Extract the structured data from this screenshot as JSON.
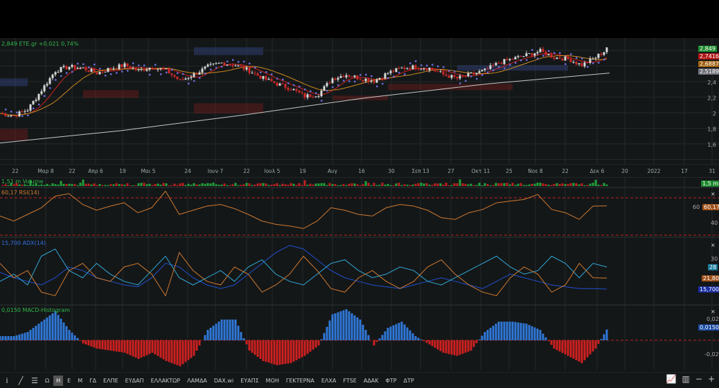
{
  "header": {
    "price": "2,849",
    "symbol": "ETE.gr",
    "change": "+0,021",
    "change_pct": "0,74%"
  },
  "panes": {
    "volume": {
      "label": "1,51 m Volume",
      "tag": "1,5 m"
    },
    "rsi": {
      "label": "60,17 RSI(14)",
      "tag": "60,17",
      "ticks": [
        "60",
        "40"
      ]
    },
    "adx": {
      "label": "15,700 ADX(14)",
      "tags": [
        "28",
        "21,80",
        "15,700"
      ],
      "ticks": [
        "30"
      ]
    },
    "macd": {
      "label": "0,0150 MACD-Histogram",
      "tag": "0,0150",
      "ticks": [
        "0,02",
        "-0,02"
      ]
    }
  },
  "price_tags": [
    {
      "value": "2,849",
      "color": "#1e8a2e"
    },
    {
      "value": "2,7416",
      "color": "#b01818"
    },
    {
      "value": "2,6887",
      "color": "#a06010"
    },
    {
      "value": "2,5189",
      "color": "#707078"
    }
  ],
  "close_symbol": "×",
  "chart_data": {
    "type": "candlestick",
    "ylim": [
      1.5,
      2.9
    ],
    "price_ticks": [
      "2,4",
      "2,2",
      "2",
      "1,8",
      "1,6"
    ],
    "price_tick_values": [
      2.4,
      2.2,
      2.0,
      1.8,
      1.6
    ],
    "x_tick_labels": [
      "22",
      "Μαρ 8",
      "22",
      "Απρ 6",
      "19",
      "Μαι 5",
      "24",
      "Ιουν 7",
      "22",
      "Ιουλ 5",
      "19",
      "Αυγ",
      "16",
      "30",
      "Σεπ 13",
      "27",
      "Οκτ 11",
      "25",
      "Νοε 8",
      "22",
      "Δεκ 6",
      "20",
      "2022",
      "17",
      "31"
    ],
    "closes": [
      2.0,
      1.97,
      2.05,
      2.3,
      2.55,
      2.6,
      2.58,
      2.52,
      2.58,
      2.62,
      2.55,
      2.6,
      2.55,
      2.42,
      2.5,
      2.6,
      2.65,
      2.62,
      2.55,
      2.45,
      2.38,
      2.32,
      2.22,
      2.25,
      2.45,
      2.5,
      2.45,
      2.42,
      2.52,
      2.58,
      2.6,
      2.58,
      2.5,
      2.45,
      2.5,
      2.55,
      2.65,
      2.7,
      2.75,
      2.8,
      2.72,
      2.7,
      2.62,
      2.72,
      2.849
    ],
    "ma200": [
      1.62,
      1.78,
      1.98,
      2.2,
      2.38,
      2.5189
    ],
    "rsi": [
      48,
      42,
      50,
      58,
      72,
      75,
      62,
      55,
      60,
      64,
      52,
      58,
      78,
      50,
      55,
      60,
      62,
      57,
      50,
      42,
      38,
      36,
      33,
      42,
      58,
      55,
      50,
      48,
      58,
      62,
      60,
      55,
      46,
      44,
      52,
      56,
      64,
      66,
      68,
      74,
      56,
      52,
      44,
      60,
      60.17
    ],
    "adx": [
      25,
      22,
      20,
      18,
      22,
      28,
      26,
      22,
      20,
      18,
      17,
      22,
      30,
      28,
      22,
      18,
      16,
      18,
      24,
      30,
      36,
      40,
      38,
      32,
      26,
      22,
      20,
      18,
      17,
      16,
      18,
      20,
      22,
      20,
      18,
      16,
      20,
      24,
      22,
      20,
      18,
      17,
      16,
      16,
      15.7
    ],
    "plus_di": [
      20,
      24,
      18,
      34,
      38,
      26,
      22,
      30,
      24,
      20,
      18,
      26,
      34,
      22,
      18,
      22,
      26,
      20,
      28,
      32,
      24,
      20,
      18,
      24,
      30,
      32,
      26,
      22,
      24,
      28,
      26,
      20,
      18,
      22,
      26,
      30,
      34,
      28,
      24,
      26,
      34,
      30,
      22,
      30,
      28
    ],
    "minus_di": [
      30,
      22,
      26,
      14,
      12,
      26,
      30,
      22,
      20,
      28,
      30,
      24,
      12,
      36,
      26,
      20,
      18,
      28,
      24,
      14,
      18,
      24,
      34,
      26,
      16,
      14,
      22,
      26,
      20,
      16,
      20,
      28,
      32,
      24,
      18,
      14,
      12,
      22,
      28,
      24,
      14,
      18,
      30,
      22,
      21.8
    ],
    "macd_hist": [
      0.004,
      0.004,
      0.008,
      0.018,
      0.028,
      0.01,
      -0.003,
      -0.008,
      -0.01,
      -0.012,
      -0.018,
      -0.012,
      -0.02,
      -0.025,
      -0.015,
      0.01,
      0.02,
      0.02,
      -0.01,
      -0.02,
      -0.024,
      -0.022,
      -0.015,
      -0.005,
      0.025,
      0.03,
      0.02,
      -0.005,
      0.012,
      0.018,
      0.004,
      -0.004,
      -0.012,
      -0.015,
      -0.01,
      0.008,
      0.018,
      0.018,
      0.016,
      0.01,
      -0.008,
      -0.015,
      -0.022,
      -0.008,
      0.015
    ],
    "zones": [
      {
        "i0": 0,
        "i1": 2,
        "p0": 2.35,
        "p1": 2.45,
        "type": "supply"
      },
      {
        "i0": 6,
        "i1": 10,
        "p0": 2.2,
        "p1": 2.3,
        "type": "demand"
      },
      {
        "i0": 14,
        "i1": 19,
        "p0": 2.75,
        "p1": 2.85,
        "type": "supply"
      },
      {
        "i0": 14,
        "i1": 19,
        "p0": 2.0,
        "p1": 2.13,
        "type": "demand"
      },
      {
        "i0": 24,
        "i1": 28,
        "p0": 2.17,
        "p1": 2.23,
        "type": "demand"
      },
      {
        "i0": 28,
        "i1": 37,
        "p0": 2.3,
        "p1": 2.38,
        "type": "demand"
      },
      {
        "i0": 0,
        "i1": 2,
        "p0": 1.65,
        "p1": 1.8,
        "type": "demand"
      },
      {
        "i0": 33,
        "i1": 41,
        "p0": 2.55,
        "p1": 2.62,
        "type": "supply"
      }
    ]
  },
  "toolbar": {
    "items": [
      "Ω",
      "Η",
      "Ε",
      "Μ",
      "ΓΔ",
      "ΕΛΠΕ",
      "ΕΥΔΑΠ",
      "ΕΛΛΑΚΤΩΡ",
      "ΛΑΜΔΑ",
      "DAX.wi",
      "ΕΥΑΠΣ",
      "ΜΟΗ",
      "ΓΕΚΤΕΡΝΑ",
      "ΕΛΧΑ",
      "FTSE",
      "ΑΔΑΚ",
      "ΦΤΡ",
      "ΔΤΡ"
    ],
    "active": "Η"
  }
}
